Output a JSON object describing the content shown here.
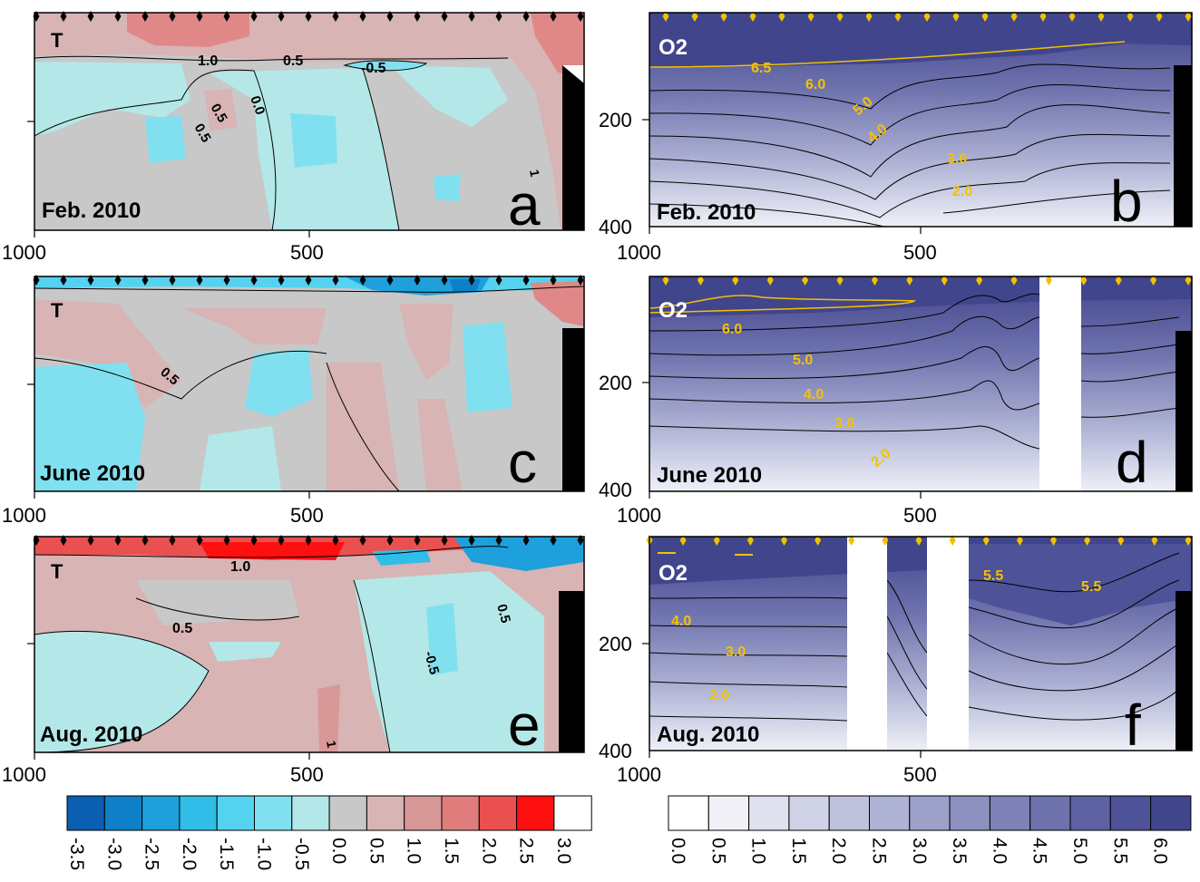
{
  "chart_data": {
    "type": "heatmap",
    "layout": "3 rows x 2 columns of depth-distance contour sections",
    "x_axis": {
      "ticks": [
        "1000",
        "500"
      ],
      "range": [
        1000,
        0
      ]
    },
    "y_axis": {
      "ticks": [
        "200",
        "400"
      ],
      "range": [
        0,
        400
      ]
    },
    "panels": [
      {
        "letter": "a",
        "variable": "T",
        "date": "Feb. 2010",
        "contour_labels": [
          "1.0",
          "0.5",
          "-0.5",
          "0.0",
          "0.5",
          "0.5",
          "1"
        ]
      },
      {
        "letter": "b",
        "variable": "O2",
        "date": "Feb. 2010",
        "contour_labels": [
          "6.5",
          "6.0",
          "5.0",
          "4.0",
          "3.0",
          "2.0"
        ]
      },
      {
        "letter": "c",
        "variable": "T",
        "date": "June 2010",
        "contour_labels": [
          "0.5"
        ]
      },
      {
        "letter": "d",
        "variable": "O2",
        "date": "June 2010",
        "contour_labels": [
          "6.0",
          "5.0",
          "4.0",
          "3.0",
          "2.0"
        ]
      },
      {
        "letter": "e",
        "variable": "T",
        "date": "Aug. 2010",
        "contour_labels": [
          "1.0",
          "0.5",
          "-0.5",
          "0.5",
          "1"
        ]
      },
      {
        "letter": "f",
        "variable": "O2",
        "date": "Aug. 2010",
        "contour_labels": [
          "5.5",
          "5.5",
          "4.0",
          "3.0",
          "2.0"
        ]
      }
    ],
    "temperature_colorbar": {
      "labels": [
        "-3.5",
        "-3.0",
        "-2.5",
        "-2.0",
        "-1.5",
        "-1.0",
        "-0.5",
        "0.0",
        "0.5",
        "1.0",
        "1.5",
        "2.0",
        "2.5",
        "3.0"
      ],
      "colors": [
        "#0a5fb0",
        "#0f80c8",
        "#1ea0dc",
        "#30bde8",
        "#55d2f0",
        "#80e0f0",
        "#b4e8e8",
        "#c8c8c8",
        "#d8b4b4",
        "#d89898",
        "#e07c7c",
        "#ea5050",
        "#ff1010",
        "#ffffff"
      ]
    },
    "oxygen_colorbar": {
      "labels": [
        "0.0",
        "0.5",
        "1.0",
        "1.5",
        "2.0",
        "2.5",
        "3.0",
        "3.5",
        "4.0",
        "4.5",
        "5.0",
        "5.5",
        "6.0"
      ],
      "colors": [
        "#ffffff",
        "#f0f0f6",
        "#e0e1ee",
        "#d0d2e6",
        "#bfc2dd",
        "#aeb2d4",
        "#9da1ca",
        "#8d91c0",
        "#7d81b6",
        "#6d71ac",
        "#5d61a2",
        "#4e5298",
        "#41458c"
      ]
    },
    "colors": {
      "t_warm": "#d8b4b4",
      "t_warmer": "#e08888",
      "t_neutral": "#c8c8c8",
      "t_cool": "#b4e8e8",
      "t_cold": "#80e0f0",
      "o2_marker": "#f2c200",
      "o2_label": "#f2c200",
      "seafloor": "#000000"
    }
  }
}
